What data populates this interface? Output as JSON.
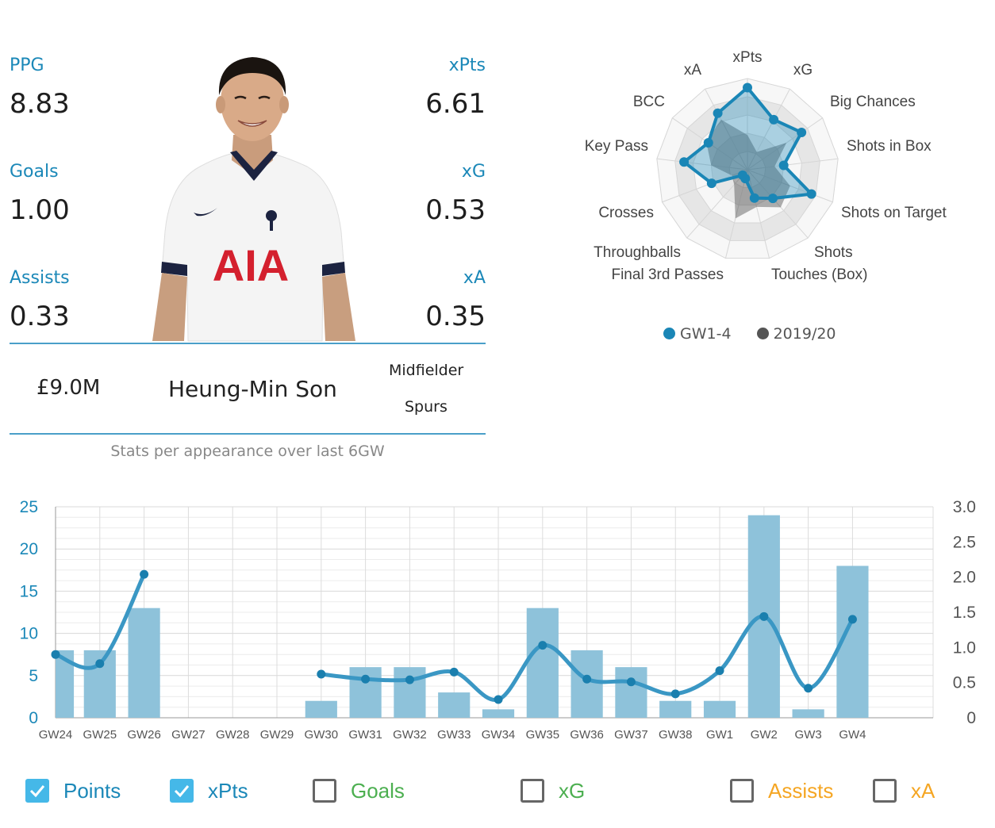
{
  "colors": {
    "accent": "#1b88b8",
    "gw_series": "#1a86b6",
    "season_series": "#555555",
    "bar": "#8ec2da",
    "line": "#3a97c4",
    "goals": "#4caf50",
    "xg": "#4caf50",
    "assists": "#f5a623",
    "xa": "#f5a623"
  },
  "stats": {
    "ppg": {
      "label": "PPG",
      "value": "8.83"
    },
    "goals": {
      "label": "Goals",
      "value": "1.00"
    },
    "assists": {
      "label": "Assists",
      "value": "0.33"
    },
    "xpts": {
      "label": "xPts",
      "value": "6.61"
    },
    "xg": {
      "label": "xG",
      "value": "0.53"
    },
    "xa": {
      "label": "xA",
      "value": "0.35"
    }
  },
  "player": {
    "photo_icon": "player-photo",
    "price": "£9.0M",
    "name": "Heung-Min Son",
    "position": "Midfielder",
    "team": "Spurs",
    "note": "Stats per appearance over last 6GW"
  },
  "radar": {
    "axes": [
      "xPts",
      "xG",
      "Big Chances",
      "Shots in Box",
      "Shots on Target",
      "Shots",
      "Touches (Box)",
      "Final 3rd Passes",
      "Throughballs",
      "Crosses",
      "Key Pass",
      "BCC",
      "xA"
    ],
    "series": [
      {
        "name": "GW1-4",
        "values": [
          0.9,
          0.62,
          0.72,
          0.4,
          0.75,
          0.42,
          0.32,
          0.1,
          0.08,
          0.42,
          0.7,
          0.52,
          0.7
        ]
      },
      {
        "name": "2019/20",
        "values": [
          0.38,
          0.22,
          0.52,
          0.3,
          0.5,
          0.55,
          0.42,
          0.55,
          0.22,
          0.18,
          0.4,
          0.55,
          0.62
        ]
      }
    ]
  },
  "chart_data": {
    "type": "bar",
    "categories": [
      "GW24",
      "GW25",
      "GW26",
      "GW27",
      "GW28",
      "GW29",
      "GW30",
      "GW31",
      "GW32",
      "GW33",
      "GW34",
      "GW35",
      "GW36",
      "GW37",
      "GW38",
      "GW1",
      "GW2",
      "GW3",
      "GW4"
    ],
    "series": [
      {
        "name": "Points",
        "type": "bar",
        "axis": "left",
        "values": [
          8,
          8,
          13,
          null,
          null,
          null,
          2,
          6,
          6,
          3,
          1,
          13,
          8,
          6,
          2,
          2,
          24,
          1,
          18
        ]
      },
      {
        "name": "xPts",
        "type": "line",
        "axis": "right",
        "values": [
          0.9,
          0.77,
          2.04,
          null,
          null,
          null,
          0.62,
          0.55,
          0.54,
          0.65,
          0.26,
          1.03,
          0.55,
          0.51,
          0.34,
          0.67,
          1.44,
          0.42,
          1.4
        ]
      }
    ],
    "y_left": {
      "ticks": [
        "0",
        "5",
        "10",
        "15",
        "20",
        "25"
      ],
      "ylim": [
        0,
        25
      ]
    },
    "y_right": {
      "ticks": [
        "0",
        "0.5",
        "1.0",
        "1.5",
        "2.0",
        "2.5",
        "3.0"
      ],
      "ylim": [
        0,
        3.0
      ]
    },
    "grid": true
  },
  "toggles": [
    {
      "label": "Points",
      "checked": true,
      "color": "#1b88b8"
    },
    {
      "label": "xPts",
      "checked": true,
      "color": "#1b88b8"
    },
    {
      "label": "Goals",
      "checked": false,
      "color": "#4caf50"
    },
    {
      "label": "xG",
      "checked": false,
      "color": "#4caf50"
    },
    {
      "label": "Assists",
      "checked": false,
      "color": "#f5a623"
    },
    {
      "label": "xA",
      "checked": false,
      "color": "#f5a623"
    }
  ]
}
